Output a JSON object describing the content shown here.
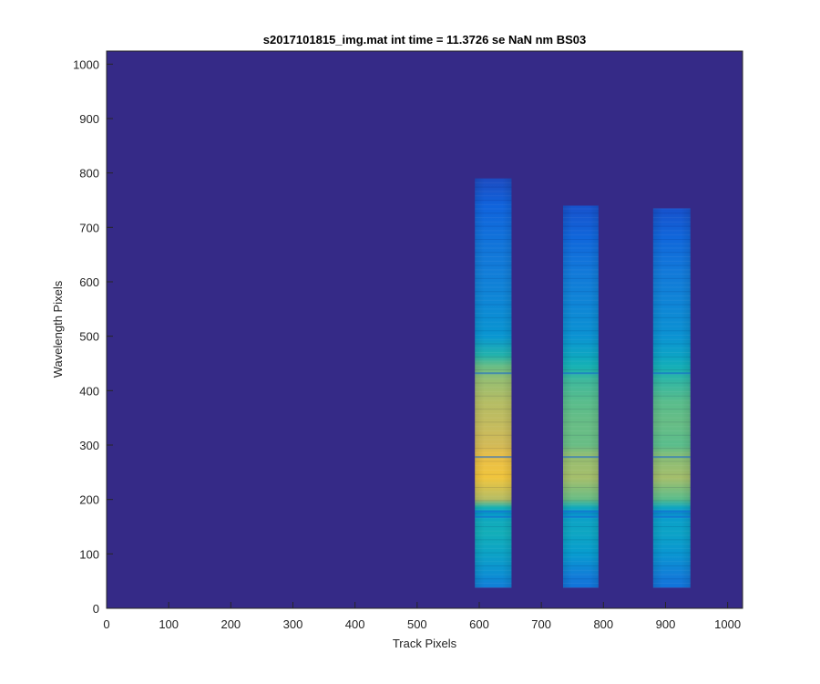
{
  "chart_data": {
    "type": "heatmap",
    "title": "s2017101815_img.mat int time = 11.3726 se  NaN nm BS03",
    "xlabel": "Track Pixels",
    "ylabel": "Wavelength Pixels",
    "xlim": [
      0,
      1024
    ],
    "ylim": [
      0,
      1024
    ],
    "xticks": [
      0,
      100,
      200,
      300,
      400,
      500,
      600,
      700,
      800,
      900,
      1000
    ],
    "yticks": [
      0,
      100,
      200,
      300,
      400,
      500,
      600,
      700,
      800,
      900,
      1000
    ],
    "colormap": "parula",
    "background_color": "#352a87",
    "grid": false,
    "bands": [
      {
        "x_start": 593,
        "x_end": 652,
        "y_start": 38,
        "y_end": 790
      },
      {
        "x_start": 735,
        "x_end": 792,
        "y_start": 38,
        "y_end": 740
      },
      {
        "x_start": 880,
        "x_end": 940,
        "y_start": 38,
        "y_end": 735
      }
    ],
    "band_profiles": [
      {
        "name": "band1",
        "y": [
          38,
          60,
          100,
          140,
          160,
          175,
          185,
          200,
          240,
          280,
          300,
          340,
          380,
          420,
          445,
          465,
          500,
          560,
          620,
          680,
          740,
          790
        ],
        "level": [
          0.3,
          0.38,
          0.5,
          0.58,
          0.55,
          0.45,
          0.6,
          0.82,
          0.92,
          0.9,
          0.86,
          0.84,
          0.82,
          0.78,
          0.72,
          0.62,
          0.42,
          0.35,
          0.3,
          0.25,
          0.18,
          0.1
        ]
      },
      {
        "name": "band2",
        "y": [
          38,
          60,
          100,
          140,
          160,
          175,
          185,
          200,
          240,
          280,
          300,
          340,
          380,
          420,
          445,
          465,
          500,
          560,
          620,
          680,
          740
        ],
        "level": [
          0.25,
          0.3,
          0.45,
          0.52,
          0.5,
          0.42,
          0.55,
          0.72,
          0.8,
          0.78,
          0.72,
          0.72,
          0.7,
          0.66,
          0.6,
          0.52,
          0.4,
          0.34,
          0.28,
          0.2,
          0.12
        ]
      },
      {
        "name": "band3",
        "y": [
          38,
          60,
          100,
          140,
          160,
          175,
          185,
          200,
          240,
          280,
          300,
          340,
          380,
          420,
          445,
          465,
          500,
          560,
          620,
          680,
          735
        ],
        "level": [
          0.25,
          0.3,
          0.42,
          0.5,
          0.48,
          0.4,
          0.52,
          0.7,
          0.8,
          0.76,
          0.7,
          0.72,
          0.7,
          0.64,
          0.58,
          0.5,
          0.4,
          0.34,
          0.28,
          0.2,
          0.12
        ]
      }
    ]
  }
}
